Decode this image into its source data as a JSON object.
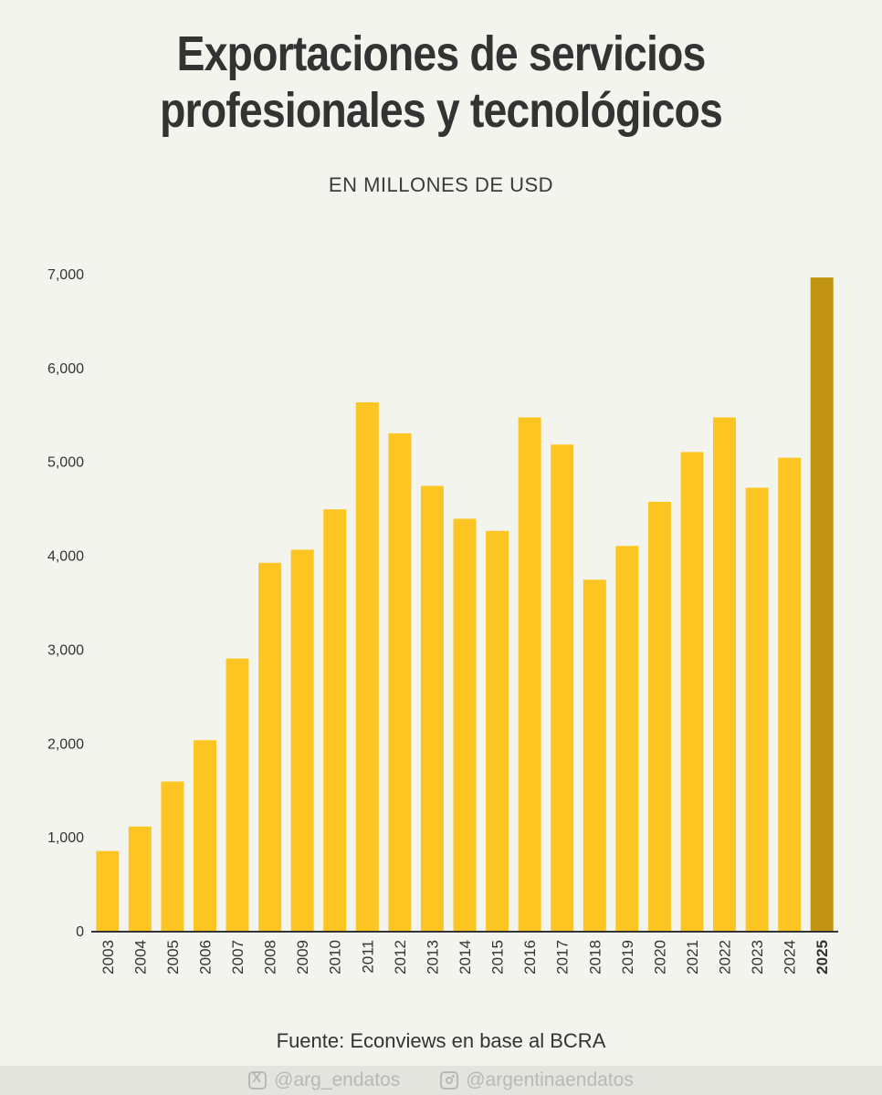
{
  "title_line1": "Exportaciones de servicios",
  "title_line2": "profesionales y tecnológicos",
  "subtitle": "EN MILLONES DE USD",
  "source": "Fuente: Econviews en base al BCRA",
  "footer": {
    "twitter_handle": "@arg_endatos",
    "instagram_handle": "@argentinaendatos"
  },
  "colors": {
    "bar": "#fdc521",
    "highlight_bar": "#c09412",
    "axis": "#333333",
    "text": "#333333"
  },
  "chart_data": {
    "type": "bar",
    "title": "Exportaciones de servicios profesionales y tecnológicos",
    "subtitle": "EN MILLONES DE USD",
    "xlabel": "",
    "ylabel": "",
    "ylim": [
      0,
      7000
    ],
    "yticks": [
      0,
      1000,
      2000,
      3000,
      4000,
      5000,
      6000,
      7000
    ],
    "ytick_labels": [
      "0",
      "1,000",
      "2,000",
      "3,000",
      "4,000",
      "5,000",
      "6,000",
      "7,000"
    ],
    "grid": false,
    "highlight": "2025",
    "categories": [
      "2003",
      "2004",
      "2005",
      "2006",
      "2007",
      "2008",
      "2009",
      "2010",
      "2011",
      "2012",
      "2013",
      "2014",
      "2015",
      "2016",
      "2017",
      "2018",
      "2019",
      "2020",
      "2021",
      "2022",
      "2023",
      "2024",
      "2025"
    ],
    "values": [
      850,
      1110,
      1590,
      2030,
      2900,
      3920,
      4060,
      4490,
      5630,
      5300,
      4740,
      4390,
      4260,
      5470,
      5180,
      3740,
      4100,
      4570,
      5100,
      5470,
      4720,
      5040,
      6960
    ]
  }
}
